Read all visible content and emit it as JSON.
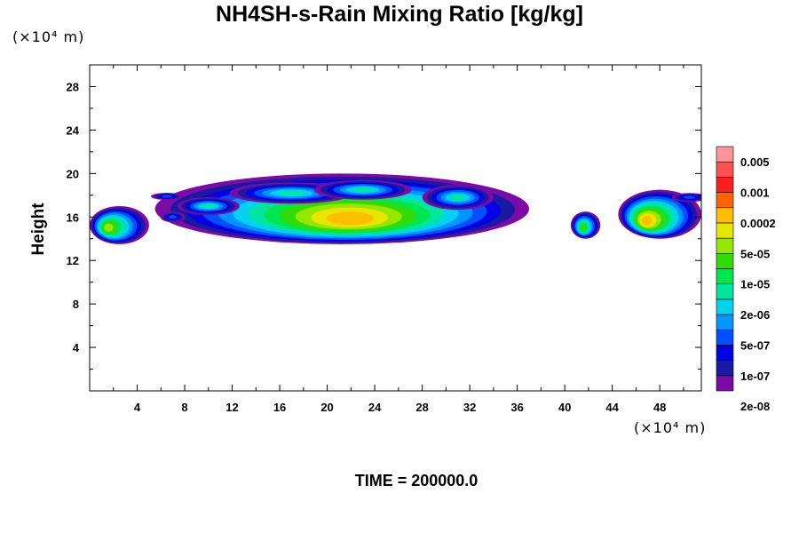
{
  "chart_data": {
    "type": "heatmap",
    "title": "NH4SH-s-Rain Mixing Ratio [kg/kg]",
    "ylabel": "Height",
    "xlabel": "",
    "x_unit": "(×10⁴ m)",
    "y_unit": "(×10⁴ m)",
    "footer": "TIME = 200000.0",
    "xlim": [
      0,
      51.5
    ],
    "ylim": [
      0,
      30
    ],
    "x_ticks": [
      4,
      8,
      12,
      16,
      20,
      24,
      28,
      32,
      36,
      40,
      44,
      48
    ],
    "y_ticks": [
      4,
      8,
      12,
      16,
      20,
      24,
      28
    ],
    "x_tick_labels": [
      "4",
      "8",
      "12",
      "16",
      "20",
      "24",
      "28",
      "32",
      "36",
      "40",
      "44",
      "48"
    ],
    "y_tick_labels": [
      "4",
      "8",
      "12",
      "16",
      "20",
      "24",
      "28"
    ],
    "colorbar": {
      "labels": [
        "0.005",
        "0.001",
        "0.0002",
        "5e-05",
        "1e-05",
        "2e-06",
        "5e-07",
        "1e-07",
        "2e-08"
      ],
      "colors": [
        "#7b0aa6",
        "#1a1aa0",
        "#0000e6",
        "#0050ff",
        "#0096ff",
        "#00d2f0",
        "#00e6a0",
        "#00e650",
        "#32dc00",
        "#96e600",
        "#e6e600",
        "#ffbe00",
        "#ff6400",
        "#ff1e1e",
        "#ff5050",
        "#ff9696"
      ]
    },
    "clouds": [
      {
        "name": "main",
        "x": [
          5.5,
          37
        ],
        "y": [
          13.5,
          20
        ],
        "peak": "0.0002",
        "peak_x": 22,
        "peak_y": 15.8
      },
      {
        "name": "left",
        "x": [
          0,
          5
        ],
        "y": [
          13.5,
          17
        ],
        "peak": "5e-05",
        "peak_x": 1.5,
        "peak_y": 15
      },
      {
        "name": "mid",
        "x": [
          40.5,
          43
        ],
        "y": [
          14,
          16.5
        ],
        "peak": "1e-05",
        "peak_x": 41.5,
        "peak_y": 15
      },
      {
        "name": "right",
        "x": [
          44.5,
          51.5
        ],
        "y": [
          14,
          18.5
        ],
        "peak": "0.0002",
        "peak_x": 46.8,
        "peak_y": 15.6
      }
    ]
  }
}
